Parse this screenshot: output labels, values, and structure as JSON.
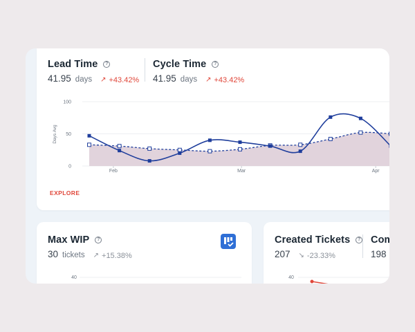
{
  "lead_time": {
    "title": "Lead Time",
    "value": "41.95",
    "unit": "days",
    "trend": "+43.42%"
  },
  "cycle_time": {
    "title": "Cycle Time",
    "value": "41.95",
    "unit": "days",
    "trend": "+43.42%"
  },
  "explore_label": "EXPLORE",
  "help_glyph": "?",
  "max_wip": {
    "title": "Max WIP",
    "value": "30",
    "unit": "tickets",
    "trend": "+15.38%",
    "axis_tick": "40"
  },
  "created_tickets": {
    "title": "Created Tickets",
    "value": "207",
    "trend": "-23.33%",
    "axis_tick": "40"
  },
  "completed": {
    "title": "Com",
    "value": "198"
  },
  "colors": {
    "accent": "#e0473a",
    "series": "#1f3e9c",
    "fill": "#d9c7d2",
    "brand": "#2f6fd6"
  },
  "chart_data": {
    "type": "line",
    "ylabel": "Days Avg",
    "ylim": [
      0,
      100
    ],
    "y_ticks": [
      "100",
      "50",
      "0"
    ],
    "x_ticks": [
      "Feb",
      "Mar",
      "Apr"
    ],
    "series": [
      {
        "style": "solid",
        "values": [
          47,
          24,
          8,
          20,
          40,
          37,
          31,
          23,
          76,
          74,
          31
        ]
      },
      {
        "style": "dashed",
        "values": [
          33,
          31,
          27,
          25,
          23,
          26,
          32,
          33,
          42,
          52,
          50
        ]
      }
    ]
  }
}
